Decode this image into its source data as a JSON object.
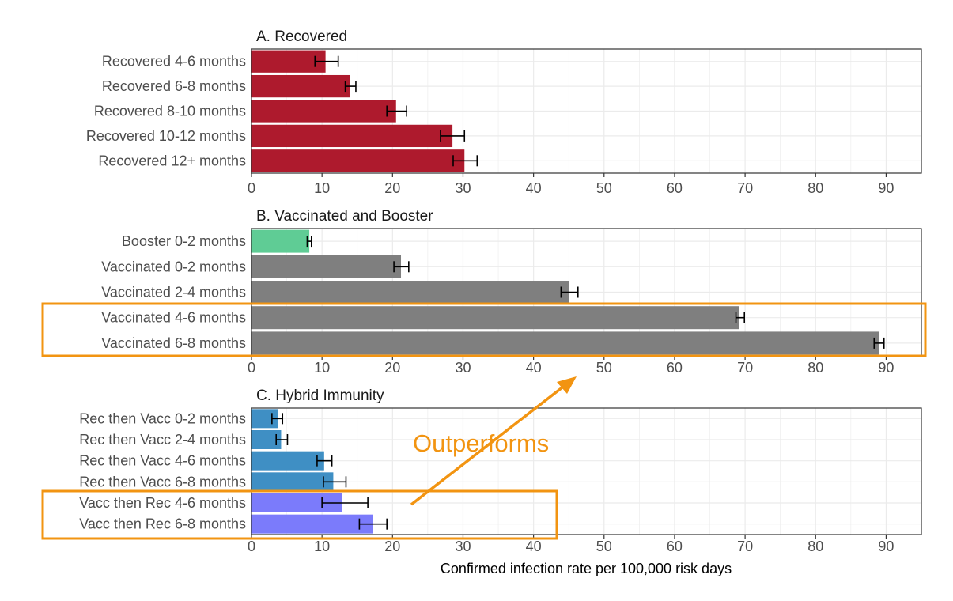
{
  "colors": {
    "recovered": "#ae1a2d",
    "booster": "#5fcc95",
    "vaccinated": "#7f7f7f",
    "rec_then_vacc": "#3f8fc4",
    "vacc_then_rec": "#7b7bfb",
    "highlight": "#f29411",
    "errorbar": "#000000",
    "grid": "#ebebeb",
    "panel_border": "#333333"
  },
  "chart_data": [
    {
      "type": "bar",
      "orientation": "horizontal",
      "title": "A. Recovered",
      "categories": [
        "Recovered 4-6 months",
        "Recovered 6-8 months",
        "Recovered 8-10 months",
        "Recovered 10-12 months",
        "Recovered 12+ months"
      ],
      "values": [
        10.5,
        14.0,
        20.5,
        28.5,
        30.2
      ],
      "error_low": [
        9.0,
        13.3,
        19.2,
        26.8,
        28.6
      ],
      "error_high": [
        12.3,
        14.8,
        22.0,
        30.2,
        32.0
      ],
      "colors": [
        "recovered",
        "recovered",
        "recovered",
        "recovered",
        "recovered"
      ],
      "xlim": [
        0,
        95
      ],
      "x_ticks": [
        "0",
        "10",
        "20",
        "30",
        "40",
        "50",
        "60",
        "70",
        "80",
        "90"
      ],
      "grid": true
    },
    {
      "type": "bar",
      "orientation": "horizontal",
      "title": "B. Vaccinated and Booster",
      "categories": [
        "Booster 0-2 months",
        "Vaccinated 0-2 months",
        "Vaccinated 2-4 months",
        "Vaccinated 4-6 months",
        "Vaccinated 6-8 months"
      ],
      "values": [
        8.2,
        21.2,
        45.0,
        69.2,
        89.0
      ],
      "error_low": [
        7.9,
        20.2,
        43.9,
        68.7,
        88.3
      ],
      "error_high": [
        8.5,
        22.3,
        46.3,
        69.9,
        89.7
      ],
      "colors": [
        "booster",
        "vaccinated",
        "vaccinated",
        "vaccinated",
        "vaccinated"
      ],
      "xlim": [
        0,
        95
      ],
      "x_ticks": [
        "0",
        "10",
        "20",
        "30",
        "40",
        "50",
        "60",
        "70",
        "80",
        "90"
      ],
      "grid": true
    },
    {
      "type": "bar",
      "orientation": "horizontal",
      "title": "C. Hybrid Immunity",
      "categories": [
        "Rec then Vacc 0-2 months",
        "Rec then Vacc 2-4 months",
        "Rec then Vacc 4-6 months",
        "Rec then Vacc 6-8 months",
        "Vacc then Rec 4-6 months",
        "Vacc then Rec 6-8 months"
      ],
      "values": [
        3.7,
        4.2,
        10.3,
        11.6,
        12.8,
        17.2
      ],
      "error_low": [
        2.9,
        3.5,
        9.3,
        10.2,
        10.0,
        15.3
      ],
      "error_high": [
        4.4,
        5.1,
        11.4,
        13.4,
        16.5,
        19.2
      ],
      "colors": [
        "rec_then_vacc",
        "rec_then_vacc",
        "rec_then_vacc",
        "rec_then_vacc",
        "vacc_then_rec",
        "vacc_then_rec"
      ],
      "xlim": [
        0,
        95
      ],
      "x_ticks": [
        "0",
        "10",
        "20",
        "30",
        "40",
        "50",
        "60",
        "70",
        "80",
        "90"
      ],
      "xlabel": "Confirmed infection rate per 100,000 risk days",
      "grid": true
    }
  ],
  "annotations": {
    "text": "Outperforms"
  }
}
